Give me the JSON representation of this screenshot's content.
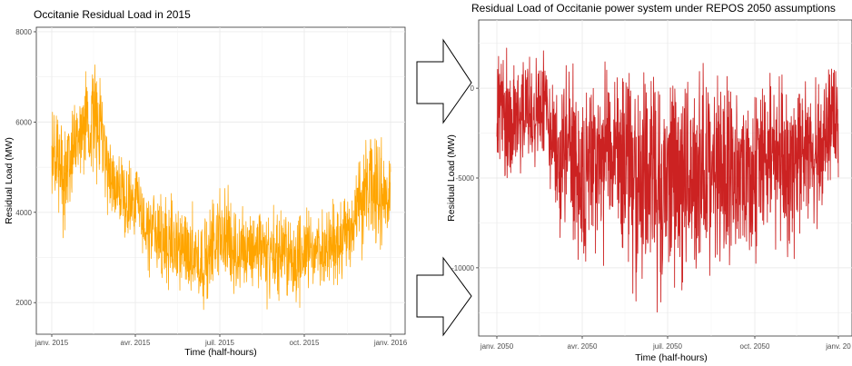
{
  "chart_data": [
    {
      "type": "line",
      "title": "Occitanie Residual Load in 2015",
      "xlabel": "Time (half-hours)",
      "ylabel": "Residual Load (MW)",
      "ylim": [
        1300,
        8100
      ],
      "y_ticks": [
        2000,
        4000,
        6000,
        8000
      ],
      "x_ticks": [
        "janv. 2015",
        "avr. 2015",
        "juil. 2015",
        "oct. 2015",
        "janv. 2016"
      ],
      "grid": true,
      "color": "#ffa500",
      "series": [
        {
          "x": [
            0,
            0.25,
            0.5,
            0.75,
            1,
            1.25,
            1.5,
            1.75,
            2,
            2.25,
            2.5,
            2.75,
            3,
            3.25,
            3.5,
            3.75,
            4,
            4.25,
            4.5,
            4.75,
            5,
            5.25,
            5.5,
            5.75,
            6,
            6.25,
            6.5,
            6.75,
            7,
            7.25,
            7.5,
            7.75,
            8,
            8.25,
            8.5,
            8.75,
            9,
            9.25,
            9.5,
            9.75,
            10,
            10.25,
            10.5,
            10.75,
            11,
            11.25,
            11.5,
            11.75,
            12
          ],
          "low": [
            3700,
            3900,
            3100,
            4300,
            4400,
            4600,
            4700,
            4200,
            3800,
            3600,
            3000,
            3100,
            2800,
            2700,
            2500,
            2400,
            2200,
            2100,
            2000,
            1800,
            1700,
            1500,
            1900,
            2000,
            2200,
            2100,
            1900,
            2000,
            2000,
            2100,
            1900,
            1800,
            2000,
            2200,
            1900,
            1700,
            2100,
            2100,
            2000,
            2200,
            2200,
            2400,
            2500,
            2700,
            2700,
            3000,
            3100,
            3200,
            3300
          ],
          "high": [
            6600,
            6600,
            6400,
            6700,
            7000,
            7300,
            7800,
            7200,
            6000,
            5600,
            5600,
            5600,
            5400,
            5000,
            4800,
            4600,
            4500,
            4600,
            4300,
            4300,
            4300,
            4200,
            4100,
            4800,
            4800,
            4600,
            4400,
            4400,
            4300,
            4300,
            4100,
            4200,
            4400,
            4300,
            4000,
            4300,
            4300,
            4200,
            4200,
            4300,
            4500,
            4400,
            4800,
            5100,
            5500,
            6400,
            5900,
            6000,
            5200
          ]
        }
      ]
    },
    {
      "type": "line",
      "title": "Residual Load of Occitanie power system under REPOS 2050 assumptions",
      "xlabel": "Time (half-hours)",
      "ylabel": "Residual Load (MW)",
      "ylim": [
        -13800,
        3800
      ],
      "y_ticks": [
        -10000,
        -5000,
        0
      ],
      "x_ticks": [
        "janv. 2050",
        "avr. 2050",
        "juil. 2050",
        "oct. 2050",
        "janv. 20"
      ],
      "grid": true,
      "color": "#cc2222",
      "series": [
        {
          "x": [
            0,
            0.25,
            0.5,
            0.75,
            1,
            1.25,
            1.5,
            1.75,
            2,
            2.25,
            2.5,
            2.75,
            3,
            3.25,
            3.5,
            3.75,
            4,
            4.25,
            4.5,
            4.75,
            5,
            5.25,
            5.5,
            5.75,
            6,
            6.25,
            6.5,
            6.75,
            7,
            7.25,
            7.5,
            7.75,
            8,
            8.25,
            8.5,
            8.75,
            9,
            9.25,
            9.5,
            9.75,
            10,
            10.25,
            10.5,
            10.75,
            11,
            11.25,
            11.5,
            11.75,
            12
          ],
          "low": [
            -4800,
            -5600,
            -7500,
            -5900,
            -6000,
            -5200,
            -4800,
            -5800,
            -6000,
            -11000,
            -8000,
            -9000,
            -12600,
            -11500,
            -11000,
            -10000,
            -10500,
            -10000,
            -11000,
            -12000,
            -12600,
            -11000,
            -12000,
            -13500,
            -11000,
            -12000,
            -12300,
            -11500,
            -11000,
            -12000,
            -12000,
            -11000,
            -12000,
            -10500,
            -11000,
            -10000,
            -11000,
            -10200,
            -10000,
            -9000,
            -9000,
            -11000,
            -10000,
            -9000,
            -8000,
            -9000,
            -7500,
            -6500,
            -6800
          ],
          "high": [
            3000,
            2600,
            2800,
            1800,
            3500,
            3200,
            2200,
            2600,
            1000,
            1700,
            1800,
            1700,
            1400,
            1600,
            1700,
            1600,
            1800,
            1500,
            1900,
            1800,
            2100,
            1700,
            2400,
            1900,
            1800,
            2200,
            2000,
            1900,
            1900,
            2300,
            2400,
            1800,
            2000,
            1700,
            1900,
            1600,
            1900,
            2300,
            2000,
            1500,
            1900,
            1700,
            1600,
            1800,
            2000,
            2800,
            2600,
            2700,
            2200
          ]
        }
      ]
    }
  ],
  "arrows": {
    "count": 2,
    "direction": "right",
    "style": "outline"
  }
}
